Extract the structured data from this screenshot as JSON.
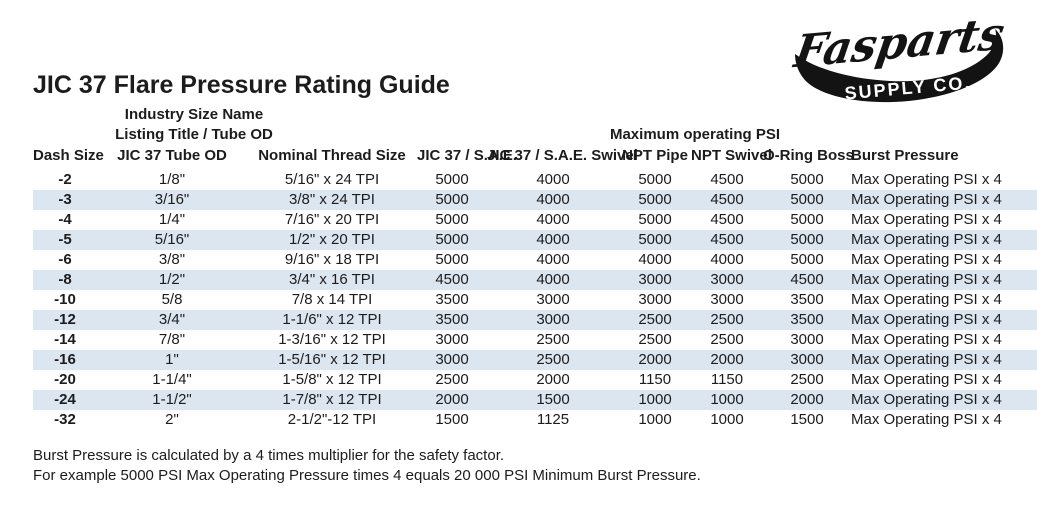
{
  "title": "JIC 37 Flare Pressure Rating Guide",
  "logo": {
    "name": "Fasparts",
    "subtext": "SUPPLY CO."
  },
  "table": {
    "group_headers": {
      "industry_line1": "Industry Size Name",
      "industry_line2": "Listing Title / Tube OD",
      "max_psi": "Maximum operating PSI"
    },
    "columns": [
      "Dash Size",
      "JIC 37 Tube OD",
      "Nominal Thread Size",
      "JIC 37 / S.A.E.",
      "JIC 37 / S.A.E. Swivel",
      "NPT Pipe",
      "NPT Swivel",
      "O-Ring Boss",
      "Burst Pressure"
    ],
    "rows": [
      [
        "-2",
        "1/8\"",
        "5/16\" x 24 TPI",
        "5000",
        "4000",
        "5000",
        "4500",
        "5000",
        "Max Operating PSI x 4"
      ],
      [
        "-3",
        "3/16\"",
        "3/8\" x 24 TPI",
        "5000",
        "4000",
        "5000",
        "4500",
        "5000",
        "Max Operating PSI x 4"
      ],
      [
        "-4",
        "1/4\"",
        "7/16\" x 20 TPI",
        "5000",
        "4000",
        "5000",
        "4500",
        "5000",
        "Max Operating PSI x 4"
      ],
      [
        "-5",
        "5/16\"",
        "1/2\" x 20 TPI",
        "5000",
        "4000",
        "5000",
        "4500",
        "5000",
        "Max Operating PSI x 4"
      ],
      [
        "-6",
        "3/8\"",
        "9/16\" x 18 TPI",
        "5000",
        "4000",
        "4000",
        "4000",
        "5000",
        "Max Operating PSI x 4"
      ],
      [
        "-8",
        "1/2\"",
        "3/4\" x 16 TPI",
        "4500",
        "4000",
        "3000",
        "3000",
        "4500",
        "Max Operating PSI x 4"
      ],
      [
        "-10",
        "5/8",
        "7/8 x 14 TPI",
        "3500",
        "3000",
        "3000",
        "3000",
        "3500",
        "Max Operating PSI x 4"
      ],
      [
        "-12",
        "3/4\"",
        "1-1/6\" x 12 TPI",
        "3500",
        "3000",
        "2500",
        "2500",
        "3500",
        "Max Operating PSI x 4"
      ],
      [
        "-14",
        "7/8\"",
        "1-3/16\" x 12 TPI",
        "3000",
        "2500",
        "2500",
        "2500",
        "3000",
        "Max Operating PSI x 4"
      ],
      [
        "-16",
        "1\"",
        "1-5/16\" x 12 TPI",
        "3000",
        "2500",
        "2000",
        "2000",
        "3000",
        "Max Operating PSI x 4"
      ],
      [
        "-20",
        "1-1/4\"",
        "1-5/8\" x 12 TPI",
        "2500",
        "2000",
        "1150",
        "1150",
        "2500",
        "Max Operating PSI x 4"
      ],
      [
        "-24",
        "1-1/2\"",
        "1-7/8\" x 12 TPI",
        "2000",
        "1500",
        "1000",
        "1000",
        "2000",
        "Max Operating PSI x 4"
      ],
      [
        "-32",
        "2\"",
        "2-1/2\"-12 TPI",
        "1500",
        "1125",
        "1000",
        "1000",
        "1500",
        "Max Operating PSI x 4"
      ]
    ]
  },
  "footer": {
    "line1": "Burst Pressure is calculated by a 4 times multiplier for the safety factor.",
    "line2": "For example 5000 PSI Max Operating Pressure times 4 equals 20 000 PSI Minimum Burst Pressure."
  },
  "colors": {
    "row_stripe": "#dce6f1",
    "ink": "#1c1c1c",
    "logo_ink": "#131313"
  }
}
